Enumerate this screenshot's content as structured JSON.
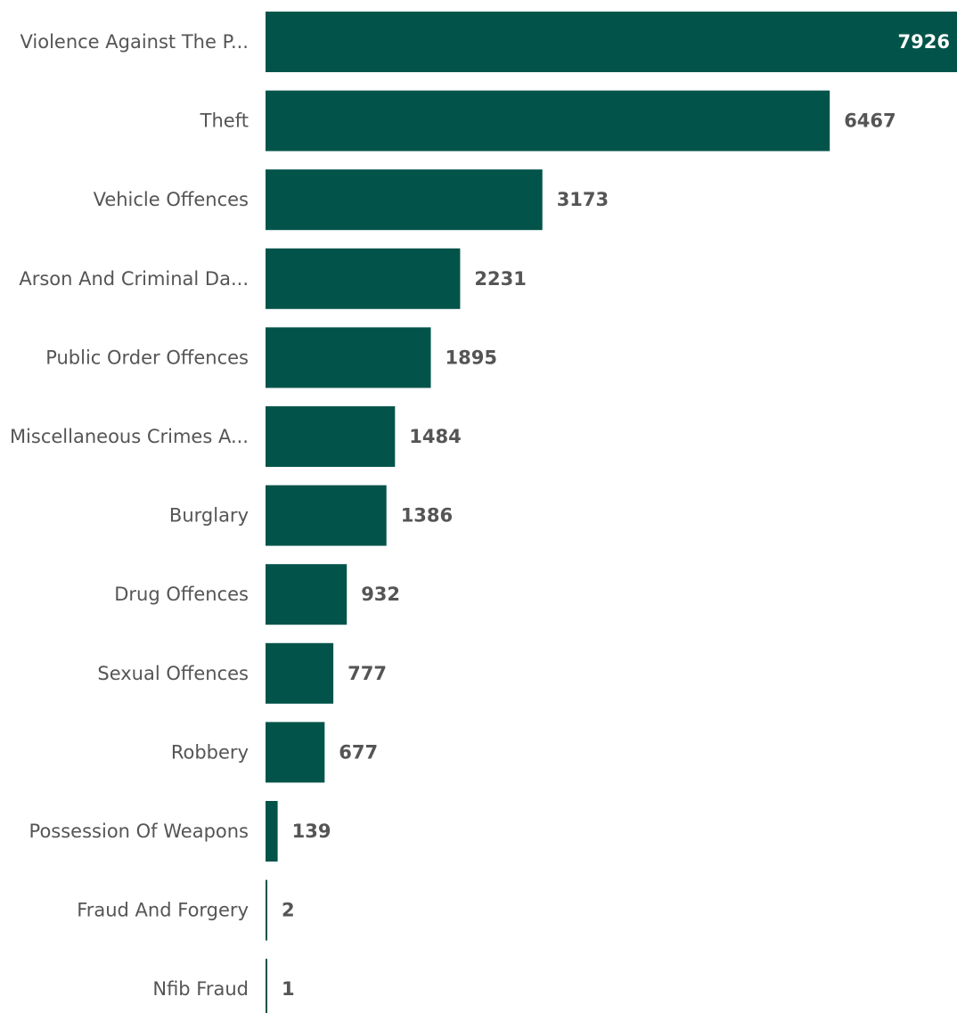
{
  "chart_data": {
    "type": "bar",
    "orientation": "horizontal",
    "categories": [
      "Violence Against The P...",
      "Theft",
      "Vehicle Offences",
      "Arson And Criminal Da...",
      "Public Order Offences",
      "Miscellaneous Crimes A...",
      "Burglary",
      "Drug Offences",
      "Sexual Offences",
      "Robbery",
      "Possession Of Weapons",
      "Fraud And Forgery",
      "Nfib Fraud"
    ],
    "values": [
      7926,
      6467,
      3173,
      2231,
      1895,
      1484,
      1386,
      932,
      777,
      677,
      139,
      2,
      1
    ],
    "data_labels": [
      "7926",
      "6467",
      "3173",
      "2231",
      "1895",
      "1484",
      "1386",
      "932",
      "777",
      "677",
      "139",
      "2",
      "1"
    ],
    "xlim": [
      0,
      7926
    ],
    "grid": false,
    "legend": "none",
    "colors": {
      "bar": "#02544a",
      "label_outside": "#555555",
      "label_inside": "#ffffff",
      "category_text": "#555555"
    }
  }
}
